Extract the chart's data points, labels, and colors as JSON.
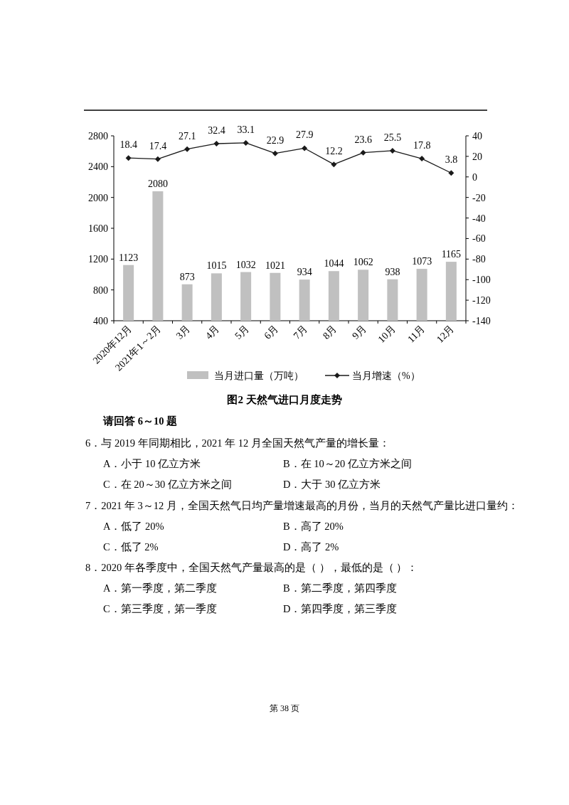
{
  "chart_data": {
    "type": "bar",
    "title": "图2  天然气进口月度走势",
    "categories": [
      "2020年12月",
      "2021年1～2月",
      "3月",
      "4月",
      "5月",
      "6月",
      "7月",
      "8月",
      "9月",
      "10月",
      "11月",
      "12月"
    ],
    "series": [
      {
        "name": "当月进口量（万吨）",
        "color": "#c0c0c0",
        "values": [
          1123,
          2080,
          873,
          1015,
          1032,
          1021,
          934,
          1044,
          1062,
          938,
          1073,
          1165
        ]
      },
      {
        "name": "当月增速（%）",
        "type": "line",
        "axis": "y2",
        "color": "#1a1a1a",
        "values": [
          18.4,
          17.4,
          27.1,
          32.4,
          33.1,
          22.9,
          27.9,
          12.2,
          23.6,
          25.5,
          17.8,
          3.8
        ]
      }
    ],
    "ylim": [
      400,
      2800
    ],
    "yticks": [
      400,
      800,
      1200,
      1600,
      2000,
      2400,
      2800
    ],
    "y2lim": [
      -140,
      40
    ],
    "y2ticks": [
      -140,
      -120,
      -100,
      -80,
      -60,
      -40,
      -20,
      0,
      20,
      40
    ],
    "marker": "diamond",
    "data_labels": true,
    "legend": "bottom",
    "annotations": [
      "请回答 6～10 题",
      "6．与 2019 年同期相比，2021 年 12 月全国天然气产量的增长量：",
      "A．小于 10 亿立方米",
      "B．在 10～20 亿立方米之间",
      "C．在 20～30 亿立方米之间",
      "D．大于 30 亿立方米",
      "7．2021 年 3～12 月，全国天然气日均产量增速最高的月份，当月的天然气产量比进口量约：",
      "A．低了 20%",
      "B．高了 20%",
      "C．低了 2%",
      "D．高了 2%",
      "8．2020 年各季度中，全国天然气产量最高的是（ ），最低的是（ ）：",
      "A．第一季度，第二季度",
      "B．第二季度，第四季度",
      "C．第三季度，第一季度",
      "D．第四季度，第三季度",
      "第 38 页"
    ]
  }
}
